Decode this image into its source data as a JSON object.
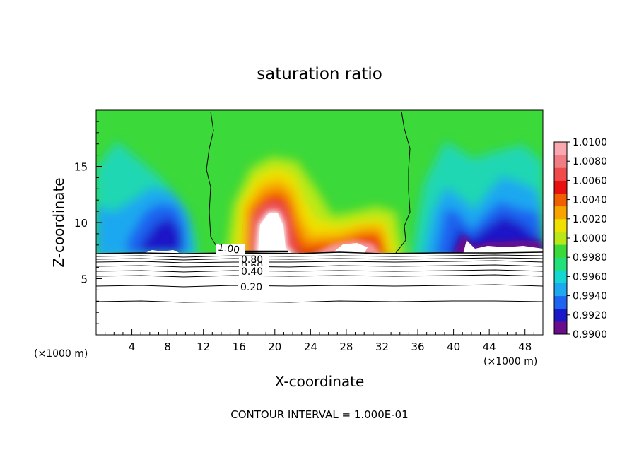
{
  "chart_data": {
    "type": "heatmap",
    "title": "saturation ratio",
    "xlabel": "X-coordinate",
    "ylabel": "Z-coordinate",
    "x_unit": "(×1000 m)",
    "xlim": [
      0,
      50
    ],
    "ylim": [
      0,
      20
    ],
    "xticks": [
      4,
      8,
      12,
      16,
      20,
      24,
      28,
      32,
      36,
      40,
      44,
      48
    ],
    "yticks": [
      5,
      10,
      15
    ],
    "note": "CONTOUR INTERVAL = 1.000E-01",
    "colorbar": {
      "levels": [
        "1.0100",
        "1.0080",
        "1.0060",
        "1.0040",
        "1.0020",
        "1.0000",
        "0.9980",
        "0.9960",
        "0.9940",
        "0.9920",
        "0.9900"
      ],
      "range": [
        0.99,
        1.01
      ],
      "colors": [
        "#6a0d8c",
        "#1a18c8",
        "#1e64f0",
        "#1ea8f0",
        "#15d6d2",
        "#22e07a",
        "#3cd93a",
        "#b8e818",
        "#f0e000",
        "#f8a400",
        "#f06000",
        "#e81010",
        "#f04a4a",
        "#f07c84",
        "#f8a8ae"
      ]
    },
    "cloud_base_height": 7.2,
    "contour_labels": [
      "1.00",
      "0.80",
      "0.60",
      "0.40",
      "0.20"
    ]
  }
}
